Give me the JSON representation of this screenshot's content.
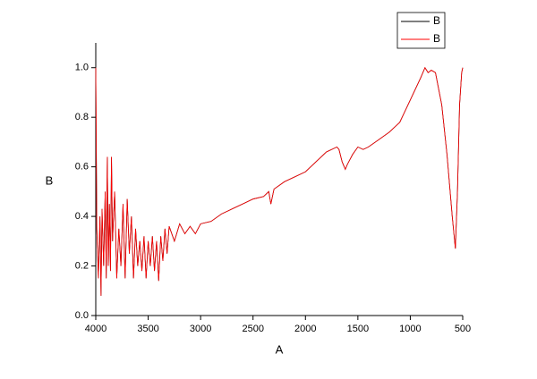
{
  "chart_data": {
    "type": "line",
    "xlabel": "A",
    "ylabel": "B",
    "xlim": [
      4000,
      500
    ],
    "ylim": [
      0,
      1.1
    ],
    "xticks": [
      4000,
      3500,
      3000,
      2500,
      2000,
      1500,
      1000,
      500
    ],
    "yticks": [
      {
        "value": 0,
        "label": "0.0"
      },
      {
        "value": 0.2,
        "label": "0.2"
      },
      {
        "value": 0.4,
        "label": "0.4"
      },
      {
        "value": 0.6,
        "label": "0.6"
      },
      {
        "value": 0.8,
        "label": "0.8"
      },
      {
        "value": 1,
        "label": "1.0"
      }
    ],
    "legend": "top right",
    "x": [
      4000,
      3990,
      3975,
      3960,
      3950,
      3940,
      3925,
      3910,
      3900,
      3890,
      3880,
      3870,
      3860,
      3850,
      3840,
      3820,
      3800,
      3780,
      3760,
      3740,
      3720,
      3700,
      3680,
      3660,
      3640,
      3620,
      3600,
      3580,
      3560,
      3540,
      3520,
      3500,
      3480,
      3460,
      3440,
      3420,
      3400,
      3380,
      3360,
      3340,
      3320,
      3300,
      3250,
      3200,
      3150,
      3100,
      3050,
      3000,
      2900,
      2800,
      2700,
      2600,
      2500,
      2400,
      2350,
      2330,
      2300,
      2200,
      2100,
      2000,
      1900,
      1800,
      1700,
      1680,
      1650,
      1620,
      1600,
      1550,
      1500,
      1450,
      1400,
      1300,
      1200,
      1100,
      1000,
      900,
      860,
      830,
      800,
      760,
      700,
      650,
      600,
      570,
      550,
      530,
      510,
      500
    ],
    "series": [
      {
        "name": "B",
        "color": "#000000",
        "values": [
          1.0,
          0.35,
          0.15,
          0.4,
          0.08,
          0.43,
          0.2,
          0.5,
          0.15,
          0.64,
          0.2,
          0.45,
          0.18,
          0.64,
          0.3,
          0.5,
          0.15,
          0.35,
          0.2,
          0.45,
          0.15,
          0.47,
          0.25,
          0.4,
          0.15,
          0.35,
          0.2,
          0.3,
          0.18,
          0.32,
          0.15,
          0.3,
          0.2,
          0.32,
          0.18,
          0.3,
          0.14,
          0.32,
          0.22,
          0.35,
          0.25,
          0.36,
          0.3,
          0.37,
          0.33,
          0.36,
          0.33,
          0.37,
          0.38,
          0.41,
          0.43,
          0.45,
          0.47,
          0.48,
          0.5,
          0.45,
          0.51,
          0.54,
          0.56,
          0.58,
          0.62,
          0.66,
          0.68,
          0.67,
          0.62,
          0.59,
          0.61,
          0.65,
          0.68,
          0.67,
          0.68,
          0.71,
          0.74,
          0.78,
          0.87,
          0.96,
          1.0,
          0.98,
          0.99,
          0.98,
          0.85,
          0.65,
          0.4,
          0.27,
          0.5,
          0.85,
          0.98,
          1.0
        ]
      },
      {
        "name": "B",
        "color": "#ff0000",
        "values": [
          1.0,
          0.35,
          0.15,
          0.4,
          0.08,
          0.43,
          0.2,
          0.5,
          0.15,
          0.64,
          0.2,
          0.45,
          0.18,
          0.64,
          0.3,
          0.5,
          0.15,
          0.35,
          0.2,
          0.45,
          0.15,
          0.47,
          0.25,
          0.4,
          0.15,
          0.35,
          0.2,
          0.3,
          0.18,
          0.32,
          0.15,
          0.3,
          0.2,
          0.32,
          0.18,
          0.3,
          0.14,
          0.32,
          0.22,
          0.35,
          0.25,
          0.36,
          0.3,
          0.37,
          0.33,
          0.36,
          0.33,
          0.37,
          0.38,
          0.41,
          0.43,
          0.45,
          0.47,
          0.48,
          0.5,
          0.45,
          0.51,
          0.54,
          0.56,
          0.58,
          0.62,
          0.66,
          0.68,
          0.67,
          0.62,
          0.59,
          0.61,
          0.65,
          0.68,
          0.67,
          0.68,
          0.71,
          0.74,
          0.78,
          0.87,
          0.96,
          1.0,
          0.98,
          0.99,
          0.98,
          0.85,
          0.65,
          0.4,
          0.27,
          0.5,
          0.85,
          0.98,
          1.0
        ]
      }
    ]
  }
}
